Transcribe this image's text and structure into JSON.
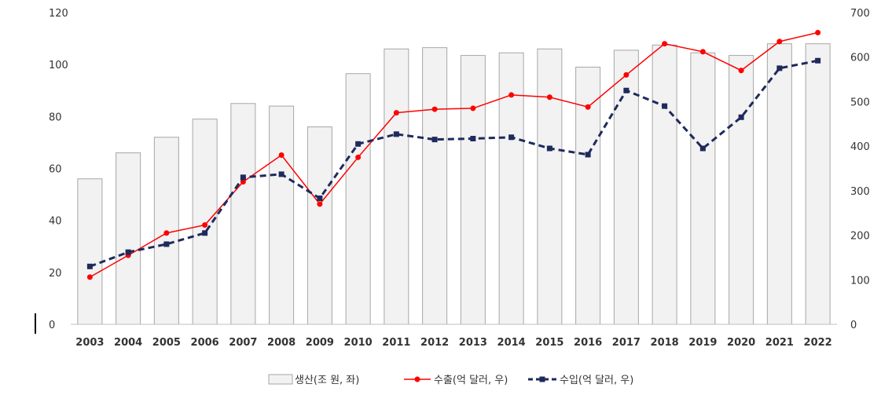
{
  "chart_data": {
    "type": "bar",
    "categories": [
      "2003",
      "2004",
      "2005",
      "2006",
      "2007",
      "2008",
      "2009",
      "2010",
      "2011",
      "2012",
      "2013",
      "2014",
      "2015",
      "2016",
      "2017",
      "2018",
      "2019",
      "2020",
      "2021",
      "2022"
    ],
    "series": [
      {
        "name": "생산(조 원, 좌)",
        "kind": "bar",
        "axis": "left",
        "values": [
          56,
          66,
          72,
          79,
          85,
          84,
          76,
          96.5,
          106,
          106.5,
          103.5,
          104.5,
          106,
          99,
          105.5,
          107.5,
          104.5,
          103.5,
          108,
          108
        ]
      },
      {
        "name": "수출(억 달러, 우)",
        "kind": "line",
        "axis": "right",
        "color": "#ff0000",
        "values": [
          106,
          155,
          205,
          223,
          320,
          380,
          270,
          375,
          475,
          483,
          485,
          515,
          510,
          488,
          560,
          630,
          612,
          570,
          635,
          655
        ]
      },
      {
        "name": "수입(억 달러, 우)",
        "kind": "line",
        "axis": "right",
        "color": "#1f2a5c",
        "values": [
          130,
          162,
          180,
          205,
          330,
          337,
          283,
          405,
          427,
          415,
          417,
          420,
          395,
          381,
          525,
          490,
          395,
          465,
          575,
          592
        ]
      }
    ],
    "y_left": {
      "ylim": [
        0,
        120
      ],
      "ticks": [
        0,
        20,
        40,
        60,
        80,
        100,
        120
      ]
    },
    "y_right": {
      "ylim": [
        0,
        700
      ],
      "ticks": [
        0,
        100,
        200,
        300,
        400,
        500,
        600,
        700
      ]
    },
    "grid": false,
    "legend_position": "bottom",
    "bar_color": "#f2f2f2",
    "bar_border_color": "#a6a6a6"
  }
}
